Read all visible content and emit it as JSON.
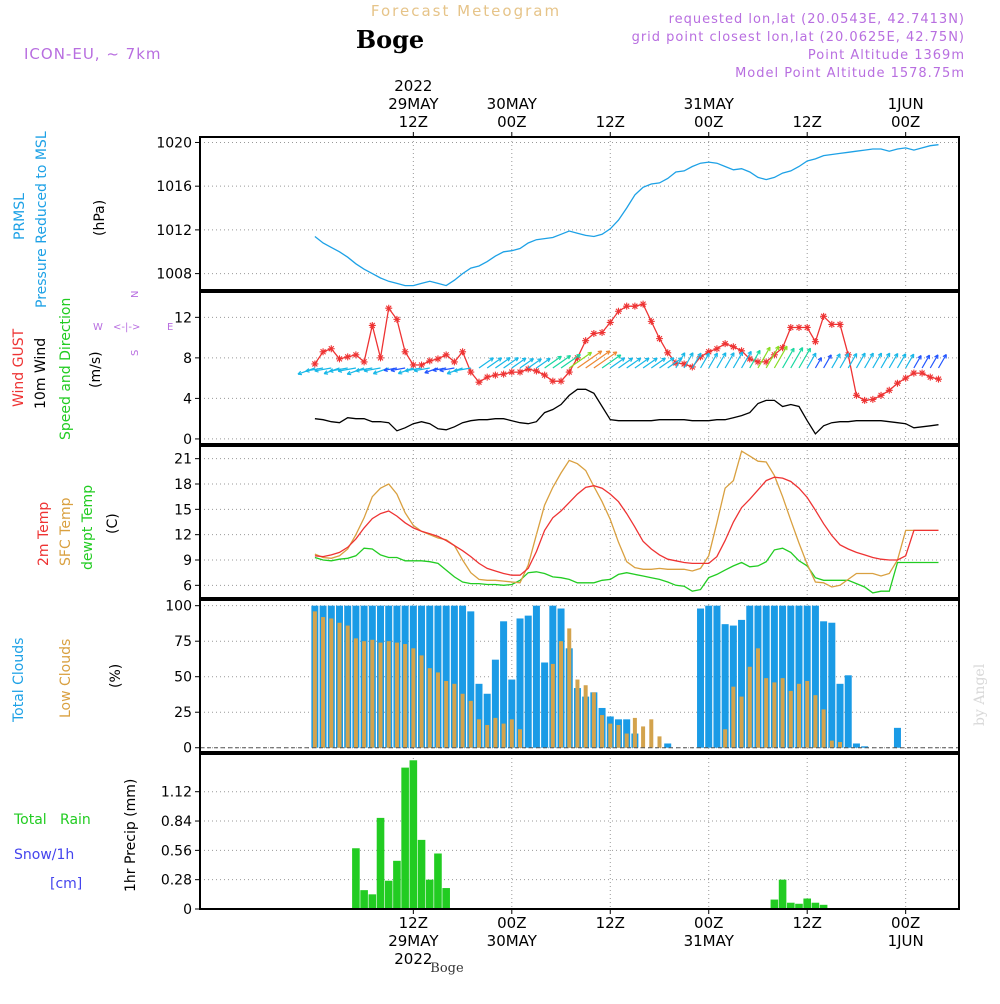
{
  "header": {
    "title_faded": "Forecast Meteogram",
    "location": "Boge",
    "model": "ICON-EU, ~ 7km",
    "requested": "requested lon,lat (20.0543E, 42.7413N)",
    "grid": "grid point closest lon,lat (20.0625E, 42.75N)",
    "point_alt": "Point Altitude 1369m",
    "model_alt": "Model Point Altitude 1578.75m"
  },
  "time_axis": {
    "top_labels": [
      {
        "h": 12,
        "lines": [
          "2022",
          "29MAY",
          "12Z"
        ]
      },
      {
        "h": 24,
        "lines": [
          "30MAY",
          "00Z"
        ]
      },
      {
        "h": 36,
        "lines": [
          "12Z"
        ]
      },
      {
        "h": 48,
        "lines": [
          "31MAY",
          "00Z"
        ]
      },
      {
        "h": 60,
        "lines": [
          "12Z"
        ]
      },
      {
        "h": 72,
        "lines": [
          "1JUN",
          "00Z"
        ]
      }
    ],
    "bottom_labels": [
      {
        "h": 12,
        "lines": [
          "12Z",
          "29MAY",
          "2022"
        ]
      },
      {
        "h": 24,
        "lines": [
          "00Z",
          "30MAY"
        ]
      },
      {
        "h": 36,
        "lines": [
          "12Z"
        ]
      },
      {
        "h": 48,
        "lines": [
          "00Z",
          "31MAY"
        ]
      },
      {
        "h": 60,
        "lines": [
          "12Z"
        ]
      },
      {
        "h": 72,
        "lines": [
          "00Z",
          "1JUN"
        ]
      }
    ],
    "footer": "Boge",
    "watermark": "by Angel"
  },
  "panel_labels": {
    "pressure": {
      "l1": "PRMSL",
      "l2": "Pressure Reduced to MSL",
      "unit": "(hPa)"
    },
    "wind": {
      "gust": "Wind GUST",
      "wind10": "10m Wind",
      "speed": "Speed and Direction",
      "unit": "(m/s)",
      "compass": {
        "n": "N",
        "s": "S",
        "w": "W",
        "e": "E",
        "arrows": "<-|->"
      }
    },
    "temp": {
      "t2m": "2m Temp",
      "sfc": "SFC Temp",
      "dew": "dewpt Temp",
      "unit": "(C)"
    },
    "clouds": {
      "total": "Total Clouds",
      "low": "Low Clouds",
      "unit": "(%)"
    },
    "precip": {
      "rain": "Total   Rain",
      "snow": "Snow/1h",
      "cm": "[cm]",
      "unit": "1hr Precip (mm)"
    }
  },
  "colors": {
    "pressure": "#1da1e6",
    "gust": "#ee3333",
    "wind": "#000000",
    "t2m": "#ee3333",
    "sfc": "#d9a040",
    "dew": "#22cc22",
    "total_clouds": "#1a9be6",
    "low_clouds": "#d3a34d",
    "rain": "#22cc22",
    "snow": "#4444ee",
    "label_purple": "#b86ee0",
    "header_orange": "#e6c489"
  },
  "chart_data": [
    {
      "type": "line",
      "name": "pressure",
      "x_hours": [
        0,
        1,
        2,
        3,
        4,
        5,
        6,
        7,
        8,
        9,
        10,
        11,
        12,
        13,
        14,
        15,
        16,
        17,
        18,
        19,
        20,
        21,
        22,
        23,
        24,
        25,
        26,
        27,
        28,
        29,
        30,
        31,
        32,
        33,
        34,
        35,
        36,
        37,
        38,
        39,
        40,
        41,
        42,
        43,
        44,
        45,
        46,
        47,
        48,
        49,
        50,
        51,
        52,
        53,
        54,
        55,
        56,
        57,
        58,
        59,
        60,
        61,
        62,
        63,
        64,
        65,
        66,
        67,
        68,
        69,
        70,
        71,
        72,
        73,
        74,
        75,
        76
      ],
      "values": [
        1011.4,
        1010.8,
        1010.4,
        1010.0,
        1009.5,
        1008.9,
        1008.4,
        1008.0,
        1007.6,
        1007.3,
        1007.1,
        1006.9,
        1006.9,
        1007.1,
        1007.3,
        1007.1,
        1006.9,
        1007.4,
        1008.0,
        1008.5,
        1008.7,
        1009.1,
        1009.6,
        1010.0,
        1010.1,
        1010.3,
        1010.8,
        1011.1,
        1011.2,
        1011.3,
        1011.6,
        1011.9,
        1011.7,
        1011.5,
        1011.4,
        1011.6,
        1012.1,
        1012.9,
        1014.0,
        1015.2,
        1015.9,
        1016.2,
        1016.3,
        1016.7,
        1017.3,
        1017.4,
        1017.8,
        1018.1,
        1018.2,
        1018.1,
        1017.8,
        1017.5,
        1017.6,
        1017.3,
        1016.8,
        1016.6,
        1016.8,
        1017.2,
        1017.4,
        1017.8,
        1018.3,
        1018.5,
        1018.8,
        1018.9,
        1019.0,
        1019.1,
        1019.2,
        1019.3,
        1019.4,
        1019.4,
        1019.2,
        1019.4,
        1019.5,
        1019.3,
        1019.5,
        1019.7,
        1019.8
      ],
      "ylim": [
        1006.5,
        1020.5
      ],
      "yticks": [
        1008,
        1012,
        1016,
        1020
      ]
    },
    {
      "type": "line",
      "name": "wind",
      "series": [
        {
          "key": "gust",
          "values": [
            7.4,
            8.6,
            8.9,
            7.9,
            8.1,
            8.3,
            7.6,
            11.2,
            8.0,
            12.9,
            11.8,
            8.6,
            7.3,
            7.3,
            7.7,
            7.9,
            8.3,
            7.6,
            8.6,
            6.6,
            5.6,
            6.1,
            6.3,
            6.4,
            6.6,
            6.6,
            6.9,
            6.7,
            6.3,
            5.7,
            5.7,
            6.6,
            8.0,
            9.7,
            10.4,
            10.5,
            11.5,
            12.6,
            13.1,
            13.1,
            13.3,
            11.6,
            9.9,
            8.5,
            7.5,
            7.4,
            7.1,
            8.1,
            8.6,
            8.9,
            9.4,
            9.1,
            8.7,
            7.9,
            7.6,
            7.6,
            8.3,
            9.0,
            11.0,
            11.0,
            11.0,
            9.6,
            12.1,
            11.3,
            11.3,
            8.3,
            4.3,
            3.8,
            3.9,
            4.3,
            4.8,
            5.5,
            6.0,
            6.5,
            6.5,
            6.1,
            5.9
          ]
        },
        {
          "key": "wind10",
          "values": [
            2.0,
            1.9,
            1.7,
            1.6,
            2.1,
            2.0,
            2.0,
            1.7,
            1.7,
            1.6,
            0.8,
            1.1,
            1.5,
            1.7,
            1.5,
            1.0,
            0.9,
            1.2,
            1.6,
            1.8,
            1.9,
            1.9,
            2.0,
            2.0,
            1.8,
            1.6,
            1.5,
            1.7,
            2.6,
            2.9,
            3.4,
            4.3,
            4.9,
            4.9,
            4.5,
            3.2,
            1.9,
            1.8,
            1.8,
            1.8,
            1.8,
            1.8,
            1.9,
            1.9,
            1.9,
            1.9,
            1.8,
            1.8,
            1.8,
            1.9,
            1.9,
            2.1,
            2.3,
            2.6,
            3.5,
            3.8,
            3.8,
            3.2,
            3.4,
            3.2,
            1.8,
            0.5,
            1.3,
            1.6,
            1.7,
            1.7,
            1.8,
            1.8,
            1.8,
            1.8,
            1.7,
            1.6,
            1.5,
            1.1,
            1.2,
            1.3,
            1.4
          ]
        }
      ],
      "ylim": [
        -0.5,
        14.5
      ],
      "yticks": [
        0,
        4,
        8,
        12
      ]
    },
    {
      "type": "line",
      "name": "temperature",
      "series": [
        {
          "key": "t2m",
          "values": [
            9.5,
            9.4,
            9.6,
            9.9,
            10.5,
            11.5,
            12.8,
            13.9,
            14.5,
            14.8,
            14.2,
            13.4,
            12.8,
            12.4,
            12.1,
            11.8,
            11.3,
            10.7,
            10.1,
            9.4,
            8.6,
            8.0,
            7.7,
            7.4,
            7.2,
            7.2,
            8.0,
            10.0,
            12.5,
            14.0,
            14.8,
            15.8,
            16.8,
            17.6,
            17.8,
            17.5,
            16.8,
            15.9,
            14.5,
            12.9,
            11.2,
            10.3,
            9.6,
            9.1,
            8.9,
            8.7,
            8.6,
            8.6,
            8.6,
            9.4,
            11.3,
            13.5,
            15.2,
            16.2,
            17.3,
            18.4,
            18.8,
            18.7,
            18.3,
            17.5,
            16.4,
            14.9,
            13.3,
            11.9,
            10.8,
            10.3,
            9.9,
            9.6,
            9.3,
            9.1,
            9.0,
            9.0,
            9.5,
            12.5,
            12.5,
            12.5,
            12.5
          ]
        },
        {
          "key": "sfc",
          "values": [
            9.7,
            9.3,
            9.2,
            9.5,
            10.3,
            12.0,
            14.0,
            16.5,
            17.5,
            18.0,
            16.8,
            14.6,
            13.1,
            12.4,
            12.0,
            11.6,
            11.4,
            10.7,
            9.0,
            7.5,
            6.7,
            6.6,
            6.6,
            6.5,
            6.4,
            6.3,
            8.4,
            12.0,
            15.5,
            17.6,
            19.3,
            20.8,
            20.4,
            19.6,
            17.7,
            15.9,
            13.8,
            11.1,
            8.8,
            8.1,
            7.9,
            7.9,
            8.0,
            7.9,
            7.9,
            7.9,
            7.7,
            8.0,
            9.5,
            13.4,
            17.5,
            18.4,
            21.9,
            21.3,
            20.7,
            20.6,
            19.0,
            16.5,
            13.7,
            11.0,
            8.5,
            6.4,
            6.3,
            5.8,
            6.0,
            6.7,
            7.4,
            7.4,
            7.4,
            7.1,
            7.4,
            9.0,
            12.5,
            12.5,
            12.5,
            12.5,
            12.5
          ]
        },
        {
          "key": "dew",
          "values": [
            9.3,
            9.0,
            8.9,
            9.1,
            9.2,
            9.5,
            10.4,
            10.3,
            9.6,
            9.3,
            9.3,
            8.9,
            8.9,
            8.9,
            8.8,
            8.6,
            7.8,
            7.0,
            6.4,
            6.2,
            6.2,
            6.1,
            6.1,
            6.0,
            6.1,
            6.6,
            7.5,
            7.6,
            7.4,
            7.0,
            6.9,
            6.7,
            6.3,
            6.3,
            6.3,
            6.6,
            6.7,
            7.3,
            7.5,
            7.3,
            7.1,
            6.9,
            6.7,
            6.4,
            6.0,
            5.9,
            5.3,
            5.5,
            6.9,
            7.3,
            7.8,
            8.3,
            8.7,
            8.2,
            8.3,
            8.8,
            10.2,
            10.4,
            9.9,
            8.9,
            8.3,
            6.9,
            6.6,
            6.6,
            6.6,
            6.6,
            6.2,
            5.8,
            5.1,
            5.3,
            5.3,
            8.7,
            8.7,
            8.7,
            8.7,
            8.7,
            8.7
          ]
        }
      ],
      "ylim": [
        4.5,
        22.5
      ],
      "yticks": [
        6,
        9,
        12,
        15,
        18,
        21
      ]
    },
    {
      "type": "bar",
      "name": "clouds",
      "series": [
        {
          "key": "total",
          "values": [
            100,
            100,
            100,
            100,
            100,
            100,
            100,
            100,
            100,
            100,
            100,
            100,
            100,
            100,
            100,
            100,
            100,
            100,
            100,
            96,
            45,
            38,
            62,
            89,
            48,
            91,
            93,
            100,
            60,
            100,
            98,
            70,
            42,
            36,
            39,
            28,
            22,
            20,
            20,
            10,
            0,
            0,
            0,
            3,
            0,
            0,
            0,
            98,
            100,
            100,
            87,
            86,
            90,
            100,
            100,
            100,
            100,
            100,
            100,
            100,
            100,
            100,
            89,
            88,
            45,
            51,
            3,
            1,
            0,
            0,
            0,
            14,
            0,
            0,
            0,
            0,
            0
          ]
        },
        {
          "key": "low",
          "values": [
            96,
            92,
            91,
            88,
            86,
            77,
            75,
            76,
            74,
            75,
            74,
            73,
            70,
            65,
            56,
            53,
            47,
            45,
            38,
            33,
            20,
            16,
            21,
            17,
            20,
            13,
            0,
            0,
            0,
            59,
            75,
            84,
            48,
            44,
            39,
            23,
            17,
            16,
            10,
            21,
            15,
            20,
            8,
            0,
            0,
            0,
            0,
            0,
            0,
            0,
            13,
            43,
            36,
            57,
            70,
            49,
            46,
            49,
            40,
            45,
            47,
            37,
            27,
            5,
            4,
            0,
            0,
            0,
            0,
            0,
            0,
            0,
            0,
            0,
            0,
            0,
            0
          ]
        }
      ],
      "ylim": [
        -3,
        104
      ],
      "yticks": [
        0,
        25,
        50,
        75,
        100
      ]
    },
    {
      "type": "bar",
      "name": "precip",
      "values": [
        0,
        0,
        0,
        0,
        0,
        0.58,
        0.18,
        0.14,
        0.87,
        0.27,
        0.46,
        1.35,
        1.42,
        0.66,
        0.28,
        0.53,
        0.2,
        0,
        0,
        0,
        0,
        0,
        0,
        0,
        0,
        0,
        0,
        0,
        0,
        0,
        0,
        0,
        0,
        0,
        0,
        0,
        0,
        0,
        0,
        0,
        0,
        0,
        0,
        0,
        0,
        0,
        0,
        0,
        0,
        0,
        0,
        0,
        0,
        0,
        0,
        0,
        0.09,
        0.28,
        0.06,
        0.05,
        0.1,
        0.06,
        0.04,
        0,
        0,
        0,
        0,
        0,
        0,
        0,
        0,
        0,
        0,
        0,
        0,
        0,
        0
      ],
      "ylim": [
        0,
        1.48
      ],
      "yticks": [
        0,
        0.28,
        0.56,
        0.84,
        1.12
      ]
    }
  ]
}
